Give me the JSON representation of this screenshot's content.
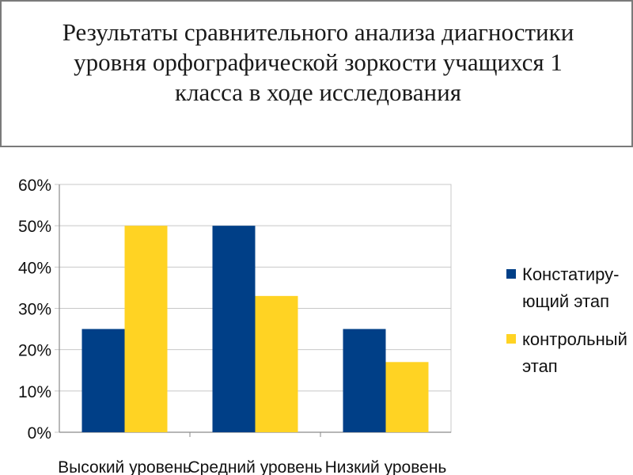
{
  "slide": {
    "title": "Результаты сравнительного анализа диагностики уровня орфографической зоркости учащихся 1 класса в ходе исследования"
  },
  "colors": {
    "series1": "#003f87",
    "series2": "#ffd323",
    "grid": "#c8c8c8",
    "axis": "#8a8a8a"
  },
  "chart_data": {
    "type": "bar",
    "categories": [
      "Высокий уровень",
      "Средний уровень",
      "Низкий уровень"
    ],
    "series": [
      {
        "name": "Констатиру-ющий этап",
        "name_lines": [
          "Констатиру-",
          "ющий этап"
        ],
        "values": [
          25,
          50,
          25
        ]
      },
      {
        "name": "контрольный этап",
        "name_lines": [
          "контрольный",
          "этап"
        ],
        "values": [
          50,
          33,
          17
        ]
      }
    ],
    "ylim": [
      0,
      60
    ],
    "yticks": [
      "0%",
      "10%",
      "20%",
      "30%",
      "40%",
      "50%",
      "60%"
    ],
    "grid": true,
    "legend": "right"
  }
}
